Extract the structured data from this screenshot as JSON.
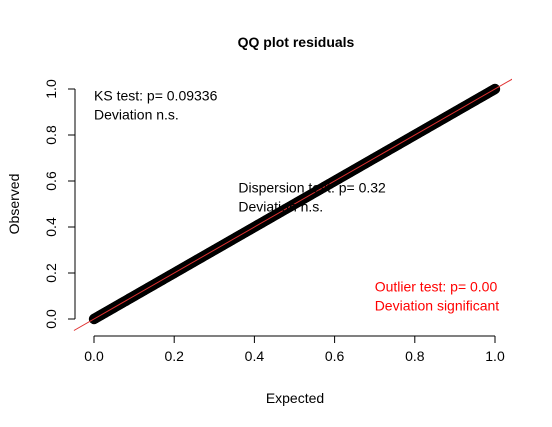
{
  "chart_data": {
    "type": "scatter",
    "title": "QQ plot residuals",
    "xlabel": "Expected",
    "ylabel": "Observed",
    "xlim": [
      0,
      1
    ],
    "ylim": [
      0,
      1
    ],
    "x_ticks": [
      "0.0",
      "0.2",
      "0.4",
      "0.6",
      "0.8",
      "1.0"
    ],
    "y_ticks": [
      "0.0",
      "0.2",
      "0.4",
      "0.6",
      "0.8",
      "1.0"
    ],
    "grid": false,
    "series": [
      {
        "values_description_free": true,
        "x": [
          0.0,
          0.05,
          0.1,
          0.15,
          0.2,
          0.25,
          0.3,
          0.35,
          0.4,
          0.45,
          0.5,
          0.55,
          0.6,
          0.65,
          0.7,
          0.75,
          0.8,
          0.85,
          0.9,
          0.95,
          1.0
        ],
        "y": [
          0.0,
          0.05,
          0.1,
          0.15,
          0.2,
          0.25,
          0.3,
          0.35,
          0.4,
          0.45,
          0.5,
          0.55,
          0.6,
          0.65,
          0.7,
          0.75,
          0.8,
          0.85,
          0.9,
          0.95,
          1.0
        ],
        "color": "#000000"
      }
    ],
    "reference_line": {
      "intercept": 0,
      "slope": 1,
      "color": "#e03030"
    },
    "annotations": [
      {
        "lines": [
          "KS test: p= 0.09336",
          "Deviation  n.s."
        ],
        "color": "#000000",
        "x": 0.0,
        "y": 0.95
      },
      {
        "lines": [
          "Dispersion test: p= 0.32",
          "Deviation  n.s."
        ],
        "color": "#000000",
        "x": 0.36,
        "y": 0.55
      },
      {
        "lines": [
          "Outlier test: p= 0.00",
          "Deviation  significant"
        ],
        "color": "#ff0000",
        "x": 0.7,
        "y": 0.12
      }
    ]
  }
}
